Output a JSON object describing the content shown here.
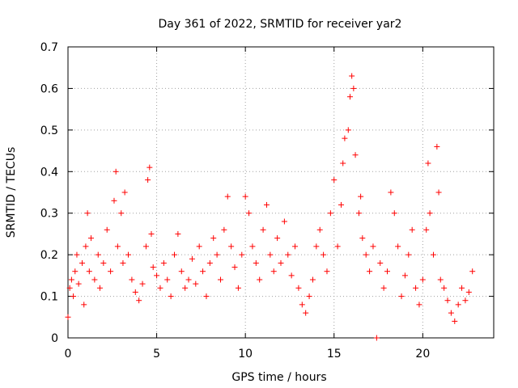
{
  "chart_data": {
    "type": "scatter",
    "title": "Day 361 of 2022, SRMTID for receiver yar2",
    "xlabel": "GPS time / hours",
    "ylabel": "SRMTID / TECUs",
    "xlim": [
      0,
      24
    ],
    "ylim": [
      0,
      0.7
    ],
    "xticks": [
      0,
      5,
      10,
      15,
      20
    ],
    "xtick_labels": [
      "0",
      "5",
      "10",
      "15",
      "20"
    ],
    "yticks": [
      0,
      0.1,
      0.2,
      0.3,
      0.4,
      0.5,
      0.6,
      0.7
    ],
    "ytick_labels": [
      "0",
      "0.1",
      "0.2",
      "0.3",
      "0.4",
      "0.5",
      "0.6",
      "0.7"
    ],
    "grid": true,
    "marker": "plus",
    "marker_color": "#ff0000",
    "series": [
      {
        "name": "SRMTID",
        "points": [
          [
            0.0,
            0.05
          ],
          [
            0.1,
            0.12
          ],
          [
            0.2,
            0.14
          ],
          [
            0.3,
            0.1
          ],
          [
            0.4,
            0.16
          ],
          [
            0.5,
            0.2
          ],
          [
            0.6,
            0.13
          ],
          [
            0.8,
            0.18
          ],
          [
            0.9,
            0.08
          ],
          [
            1.0,
            0.22
          ],
          [
            1.1,
            0.3
          ],
          [
            1.2,
            0.16
          ],
          [
            1.3,
            0.24
          ],
          [
            1.5,
            0.14
          ],
          [
            1.7,
            0.2
          ],
          [
            1.8,
            0.12
          ],
          [
            2.0,
            0.18
          ],
          [
            2.2,
            0.26
          ],
          [
            2.4,
            0.16
          ],
          [
            2.6,
            0.33
          ],
          [
            2.7,
            0.4
          ],
          [
            2.8,
            0.22
          ],
          [
            3.0,
            0.3
          ],
          [
            3.1,
            0.18
          ],
          [
            3.2,
            0.35
          ],
          [
            3.4,
            0.2
          ],
          [
            3.6,
            0.14
          ],
          [
            3.8,
            0.11
          ],
          [
            4.0,
            0.09
          ],
          [
            4.2,
            0.13
          ],
          [
            4.4,
            0.22
          ],
          [
            4.5,
            0.38
          ],
          [
            4.6,
            0.41
          ],
          [
            4.7,
            0.25
          ],
          [
            4.8,
            0.17
          ],
          [
            5.0,
            0.15
          ],
          [
            5.2,
            0.12
          ],
          [
            5.4,
            0.18
          ],
          [
            5.6,
            0.14
          ],
          [
            5.8,
            0.1
          ],
          [
            6.0,
            0.2
          ],
          [
            6.2,
            0.25
          ],
          [
            6.4,
            0.16
          ],
          [
            6.6,
            0.12
          ],
          [
            6.8,
            0.14
          ],
          [
            7.0,
            0.19
          ],
          [
            7.2,
            0.13
          ],
          [
            7.4,
            0.22
          ],
          [
            7.6,
            0.16
          ],
          [
            7.8,
            0.1
          ],
          [
            8.0,
            0.18
          ],
          [
            8.2,
            0.24
          ],
          [
            8.4,
            0.2
          ],
          [
            8.6,
            0.14
          ],
          [
            8.8,
            0.26
          ],
          [
            9.0,
            0.34
          ],
          [
            9.2,
            0.22
          ],
          [
            9.4,
            0.17
          ],
          [
            9.6,
            0.12
          ],
          [
            9.8,
            0.2
          ],
          [
            10.0,
            0.34
          ],
          [
            10.2,
            0.3
          ],
          [
            10.4,
            0.22
          ],
          [
            10.6,
            0.18
          ],
          [
            10.8,
            0.14
          ],
          [
            11.0,
            0.26
          ],
          [
            11.2,
            0.32
          ],
          [
            11.4,
            0.2
          ],
          [
            11.6,
            0.16
          ],
          [
            11.8,
            0.24
          ],
          [
            12.0,
            0.18
          ],
          [
            12.2,
            0.28
          ],
          [
            12.4,
            0.2
          ],
          [
            12.6,
            0.15
          ],
          [
            12.8,
            0.22
          ],
          [
            13.0,
            0.12
          ],
          [
            13.2,
            0.08
          ],
          [
            13.4,
            0.06
          ],
          [
            13.6,
            0.1
          ],
          [
            13.8,
            0.14
          ],
          [
            14.0,
            0.22
          ],
          [
            14.2,
            0.26
          ],
          [
            14.4,
            0.2
          ],
          [
            14.6,
            0.16
          ],
          [
            14.8,
            0.3
          ],
          [
            15.0,
            0.38
          ],
          [
            15.2,
            0.22
          ],
          [
            15.4,
            0.32
          ],
          [
            15.5,
            0.42
          ],
          [
            15.6,
            0.48
          ],
          [
            15.8,
            0.5
          ],
          [
            15.9,
            0.58
          ],
          [
            16.0,
            0.63
          ],
          [
            16.1,
            0.6
          ],
          [
            16.2,
            0.44
          ],
          [
            16.4,
            0.3
          ],
          [
            16.5,
            0.34
          ],
          [
            16.6,
            0.24
          ],
          [
            16.8,
            0.2
          ],
          [
            17.0,
            0.16
          ],
          [
            17.2,
            0.22
          ],
          [
            17.4,
            0.0
          ],
          [
            17.6,
            0.18
          ],
          [
            17.8,
            0.12
          ],
          [
            18.0,
            0.16
          ],
          [
            18.2,
            0.35
          ],
          [
            18.4,
            0.3
          ],
          [
            18.6,
            0.22
          ],
          [
            18.8,
            0.1
          ],
          [
            19.0,
            0.15
          ],
          [
            19.2,
            0.2
          ],
          [
            19.4,
            0.26
          ],
          [
            19.6,
            0.12
          ],
          [
            19.8,
            0.08
          ],
          [
            20.0,
            0.14
          ],
          [
            20.2,
            0.26
          ],
          [
            20.3,
            0.42
          ],
          [
            20.4,
            0.3
          ],
          [
            20.6,
            0.2
          ],
          [
            20.8,
            0.46
          ],
          [
            20.9,
            0.35
          ],
          [
            21.0,
            0.14
          ],
          [
            21.2,
            0.12
          ],
          [
            21.4,
            0.09
          ],
          [
            21.6,
            0.06
          ],
          [
            21.8,
            0.04
          ],
          [
            22.0,
            0.08
          ],
          [
            22.2,
            0.12
          ],
          [
            22.4,
            0.09
          ],
          [
            22.6,
            0.11
          ],
          [
            22.8,
            0.16
          ]
        ]
      }
    ]
  }
}
